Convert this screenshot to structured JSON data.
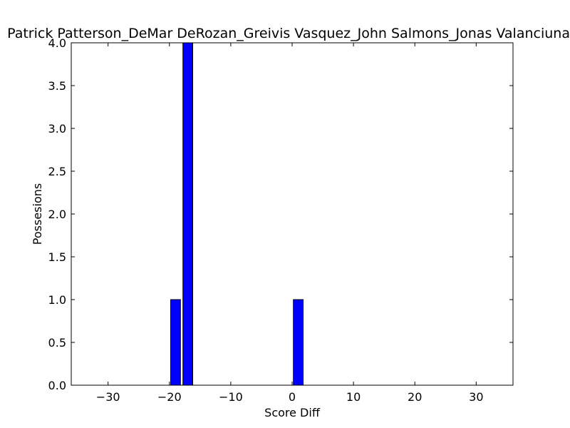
{
  "chart_data": {
    "type": "bar",
    "title": "Patrick Patterson_DeMar DeRozan_Greivis Vasquez_John Salmons_Jonas Valanciunas",
    "xlabel": "Score Diff",
    "ylabel": "Possesions",
    "xlim": [
      -36,
      36
    ],
    "ylim": [
      0,
      4
    ],
    "xticks": [
      -30,
      -20,
      -10,
      0,
      10,
      20,
      30
    ],
    "xtick_labels": [
      "−30",
      "−20",
      "−10",
      "0",
      "10",
      "20",
      "30"
    ],
    "yticks": [
      0,
      0.5,
      1,
      1.5,
      2,
      2.5,
      3,
      3.5,
      4
    ],
    "ytick_labels": [
      "0.0",
      "0.5",
      "1.0",
      "1.5",
      "2.0",
      "2.5",
      "3.0",
      "3.5",
      "4.0"
    ],
    "bar_width": 1.6,
    "bar_color": "#0000ff",
    "bars": [
      {
        "x": -19,
        "value": 1
      },
      {
        "x": -17,
        "value": 4
      },
      {
        "x": 1,
        "value": 1
      }
    ],
    "grid": false,
    "legend": "none"
  }
}
